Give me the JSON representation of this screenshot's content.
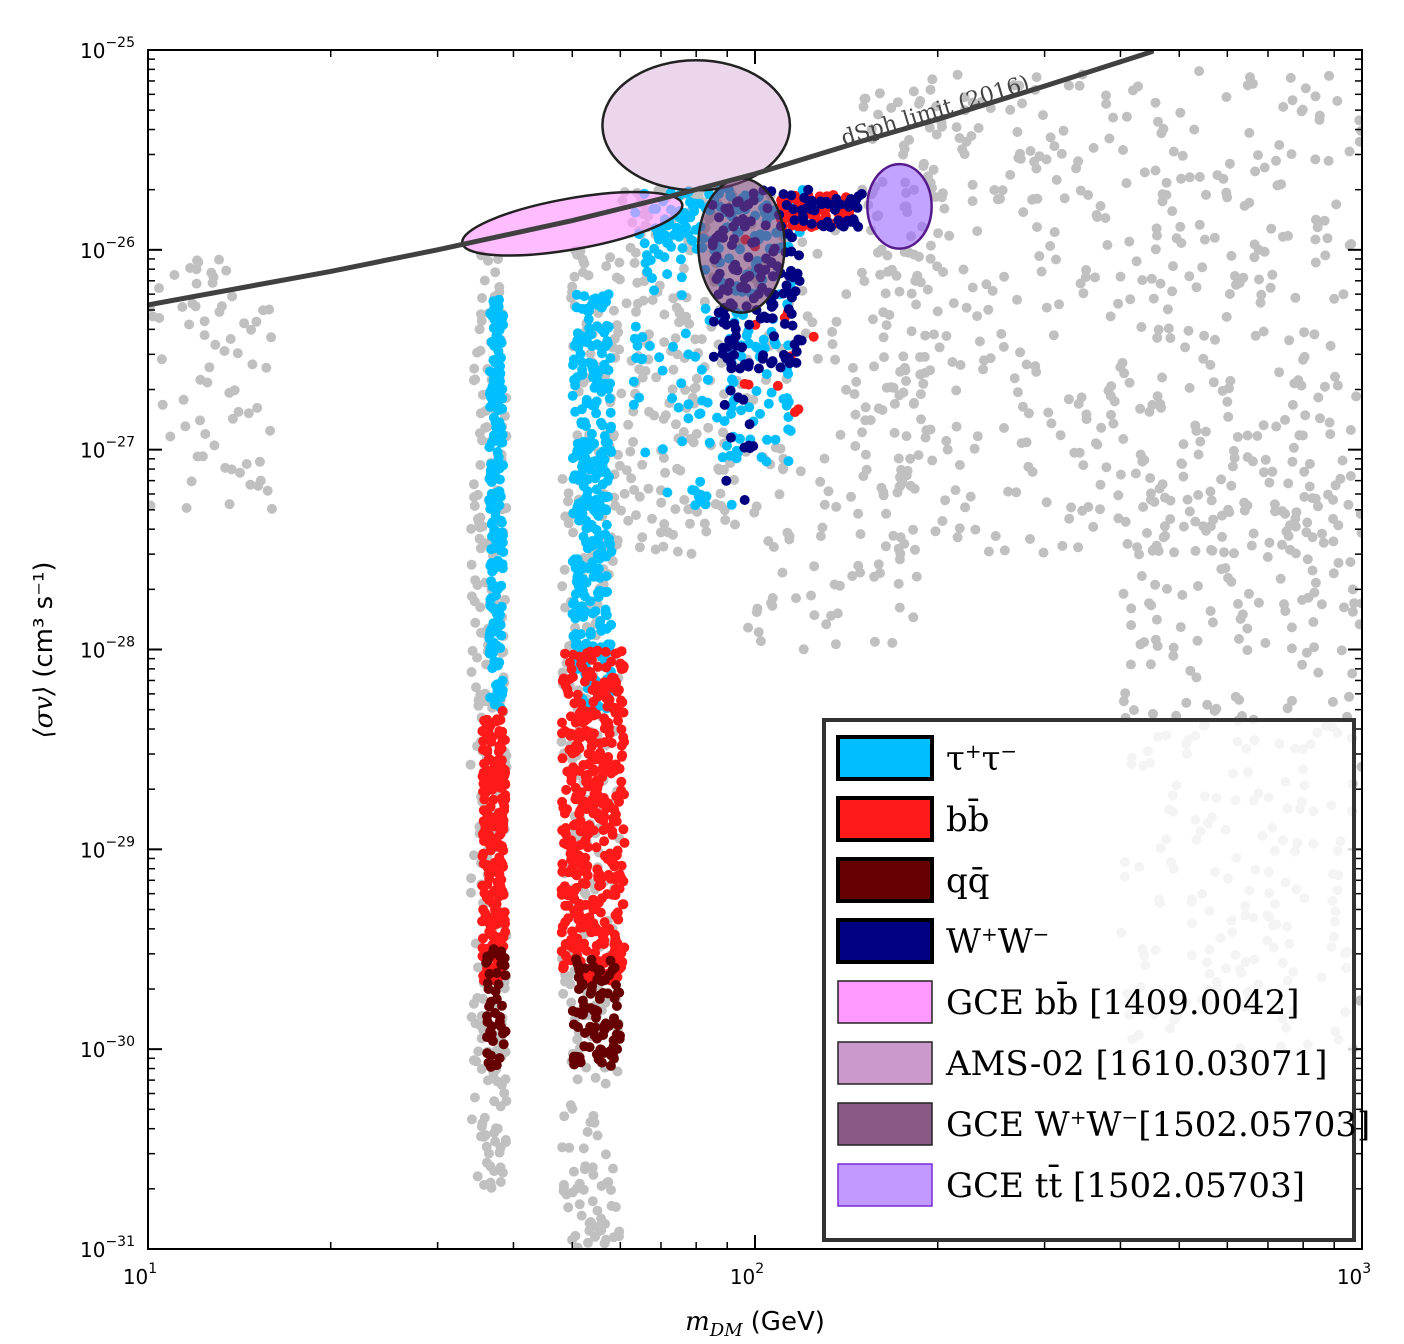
{
  "chart_data": {
    "type": "scatter",
    "title": "",
    "xlabel": "m_DM (GeV)",
    "xlabel_main": "m",
    "xlabel_sub": "DM",
    "xlabel_unit": "(GeV)",
    "ylabel": "⟨σv⟩ (cm³ s⁻¹)",
    "ylabel_main": "⟨σv⟩",
    "ylabel_unit": "(cm³ s⁻¹)",
    "xscale": "log",
    "yscale": "log",
    "xlim": [
      10,
      1000
    ],
    "ylim": [
      1e-31,
      1e-25
    ],
    "x_ticks": [
      {
        "value": 10,
        "base": "10",
        "exp": "1"
      },
      {
        "value": 100,
        "base": "10",
        "exp": "2"
      },
      {
        "value": 1000,
        "base": "10",
        "exp": "3"
      }
    ],
    "y_ticks": [
      {
        "value": 1e-31,
        "base": "10",
        "exp": "−31"
      },
      {
        "value": 1e-30,
        "base": "10",
        "exp": "−30"
      },
      {
        "value": 1e-29,
        "base": "10",
        "exp": "−29"
      },
      {
        "value": 1e-28,
        "base": "10",
        "exp": "−28"
      },
      {
        "value": 1e-27,
        "base": "10",
        "exp": "−27"
      },
      {
        "value": 1e-26,
        "base": "10",
        "exp": "−26"
      },
      {
        "value": 1e-25,
        "base": "10",
        "exp": "−25"
      }
    ],
    "curve": {
      "name": "dSph limit (2016)",
      "color": "#404040",
      "points": [
        [
          10,
          5.3e-27
        ],
        [
          20,
          7.8e-27
        ],
        [
          30,
          1e-26
        ],
        [
          50,
          1.4e-26
        ],
        [
          70,
          1.8e-26
        ],
        [
          100,
          2.4e-26
        ],
        [
          150,
          3.5e-26
        ],
        [
          200,
          4.5e-26
        ],
        [
          300,
          6.6e-26
        ],
        [
          450,
          9.8e-26
        ]
      ]
    },
    "series": [
      {
        "name": "allowed scan points",
        "legend": false,
        "color": "#c0c0c0",
        "clusters": [
          {
            "xr": [
              10,
              16
            ],
            "yr": [
              5e-28,
              1e-26
            ],
            "n": 70
          },
          {
            "xr": [
              34,
              39
            ],
            "yr": [
              2e-31,
              1e-26
            ],
            "n": 260
          },
          {
            "xr": [
              48,
              60
            ],
            "yr": [
              1e-31,
              1e-26
            ],
            "n": 320
          },
          {
            "xr": [
              60,
              92
            ],
            "yr": [
              3e-28,
              2e-26
            ],
            "n": 180
          },
          {
            "xr": [
              92,
              200
            ],
            "yr": [
              1e-28,
              2.2e-26
            ],
            "n": 170
          },
          {
            "xr": [
              150,
              1000
            ],
            "yr": [
              3e-28,
              8e-26
            ],
            "n": 520
          },
          {
            "xr": [
              400,
              1000
            ],
            "yr": [
              1e-30,
              1e-27
            ],
            "n": 300
          }
        ]
      },
      {
        "name": "τ⁺τ⁻",
        "color": "#00bfff",
        "clusters": [
          {
            "xr": [
              36.5,
              38.5
            ],
            "yr": [
              5e-29,
              6e-27
            ],
            "n": 190
          },
          {
            "xr": [
              50,
              58
            ],
            "yr": [
              5e-29,
              6e-27
            ],
            "n": 300
          },
          {
            "xr": [
              62,
              95
            ],
            "yr": [
              5e-28,
              2e-26
            ],
            "n": 90
          },
          {
            "xr": [
              68,
              120
            ],
            "yr": [
              1e-26,
              2e-26
            ],
            "n": 110
          },
          {
            "xr": [
              90,
              115
            ],
            "yr": [
              8e-28,
              1e-26
            ],
            "n": 70
          }
        ]
      },
      {
        "name": "bb̄",
        "color": "#ff1a1a",
        "clusters": [
          {
            "xr": [
              35.5,
              38.8
            ],
            "yr": [
              2.2e-30,
              5e-29
            ],
            "n": 230
          },
          {
            "xr": [
              48,
              61
            ],
            "yr": [
              2.2e-30,
              1e-28
            ],
            "n": 420
          },
          {
            "xr": [
              110,
              145
            ],
            "yr": [
              1.3e-26,
              1.9e-26
            ],
            "n": 70
          },
          {
            "xr": [
              95,
              125
            ],
            "yr": [
              1.3e-27,
              1.2e-26
            ],
            "n": 12
          }
        ]
      },
      {
        "name": "qq̄",
        "color": "#660000",
        "clusters": [
          {
            "xr": [
              36,
              39
            ],
            "yr": [
              8e-31,
              3.5e-30
            ],
            "n": 45
          },
          {
            "xr": [
              50,
              60
            ],
            "yr": [
              8e-31,
              3e-30
            ],
            "n": 90
          }
        ]
      },
      {
        "name": "W⁺W⁻",
        "color": "#000080",
        "clusters": [
          {
            "xr": [
              85,
              120
            ],
            "yr": [
              2.5e-27,
              2e-26
            ],
            "n": 150
          },
          {
            "xr": [
              120,
              150
            ],
            "yr": [
              1.3e-26,
              2e-26
            ],
            "n": 40
          },
          {
            "xr": [
              88,
              100
            ],
            "yr": [
              4.6e-28,
              2e-27
            ],
            "n": 12
          }
        ]
      }
    ],
    "regions": [
      {
        "name": "GCE bb̄ [1409.0042]",
        "color": "#ff99ff",
        "opacity": 0.65,
        "edge": "#222222",
        "center": [
          50,
          1.35e-26
        ],
        "xr": [
          33,
          77
        ],
        "yr": [
          1e-26,
          1.8e-26
        ],
        "rot": -10
      },
      {
        "name": "AMS-02 [1610.03071]",
        "color": "#cc99cc",
        "opacity": 0.4,
        "edge": "#222222",
        "center": [
          80,
          4.2e-26
        ],
        "xr": [
          55,
          112
        ],
        "yr": [
          1.9e-26,
          8.5e-26
        ],
        "rot": 0
      },
      {
        "name": "GCE W⁺W⁻[1502.05703]",
        "color": "#7a4177",
        "opacity": 0.6,
        "edge": "#222222",
        "center": [
          95,
          1.05e-26
        ],
        "xr": [
          80,
          111
        ],
        "yr": [
          4.8e-27,
          2.25e-26
        ],
        "rot": 0
      },
      {
        "name": "GCE tt̄ [1502.05703]",
        "color": "#9966ff",
        "opacity": 0.6,
        "edge": "#551a8b",
        "center": [
          173,
          1.65e-26
        ],
        "xr": [
          152,
          194
        ],
        "yr": [
          1e-26,
          2.65e-26
        ],
        "rot": 0
      }
    ],
    "legend": {
      "location": "lower-right",
      "entries": [
        {
          "label_html": "τ<tspan baseline-shift=\"super\" font-size=\"20\">+</tspan>τ<tspan baseline-shift=\"super\" font-size=\"20\">−</tspan>",
          "label": "τ⁺τ⁻",
          "color": "#00bfff",
          "edge": "#000000",
          "edge_w": 4,
          "name": "legend-tau-tau"
        },
        {
          "label_html": "bb̄",
          "label": "bb̄",
          "color": "#ff1a1a",
          "edge": "#000000",
          "edge_w": 4,
          "name": "legend-bb"
        },
        {
          "label_html": "qq̄",
          "label": "qq̄",
          "color": "#660000",
          "edge": "#000000",
          "edge_w": 4,
          "name": "legend-qq"
        },
        {
          "label_html": "W<tspan baseline-shift=\"super\" font-size=\"20\">+</tspan>W<tspan baseline-shift=\"super\" font-size=\"20\">−</tspan>",
          "label": "W⁺W⁻",
          "color": "#000080",
          "edge": "#000000",
          "edge_w": 4,
          "name": "legend-ww"
        },
        {
          "label_html": "GCE bb̄ [1409.0042]",
          "label": "GCE bb̄ [1409.0042]",
          "color": "#ff99ff",
          "edge": "#222222",
          "edge_w": 1.5,
          "name": "legend-gce-bb"
        },
        {
          "label_html": "AMS-02 [1610.03071]",
          "label": "AMS-02 [1610.03071]",
          "color": "#cc99cc",
          "edge": "#222222",
          "edge_w": 1.5,
          "name": "legend-ams02"
        },
        {
          "label_html": "GCE W<tspan baseline-shift=\"super\" font-size=\"20\">+</tspan>W<tspan baseline-shift=\"super\" font-size=\"20\">−</tspan>[1502.05703]",
          "label": "GCE W⁺W⁻[1502.05703]",
          "color": "#8a5a87",
          "edge": "#222222",
          "edge_w": 1.5,
          "name": "legend-gce-ww"
        },
        {
          "label_html": "GCE tt̄ [1502.05703]",
          "label": "GCE tt̄ [1502.05703]",
          "color": "#c299ff",
          "edge": "#7a2bd6",
          "edge_w": 1.5,
          "name": "legend-gce-tt"
        }
      ]
    }
  }
}
